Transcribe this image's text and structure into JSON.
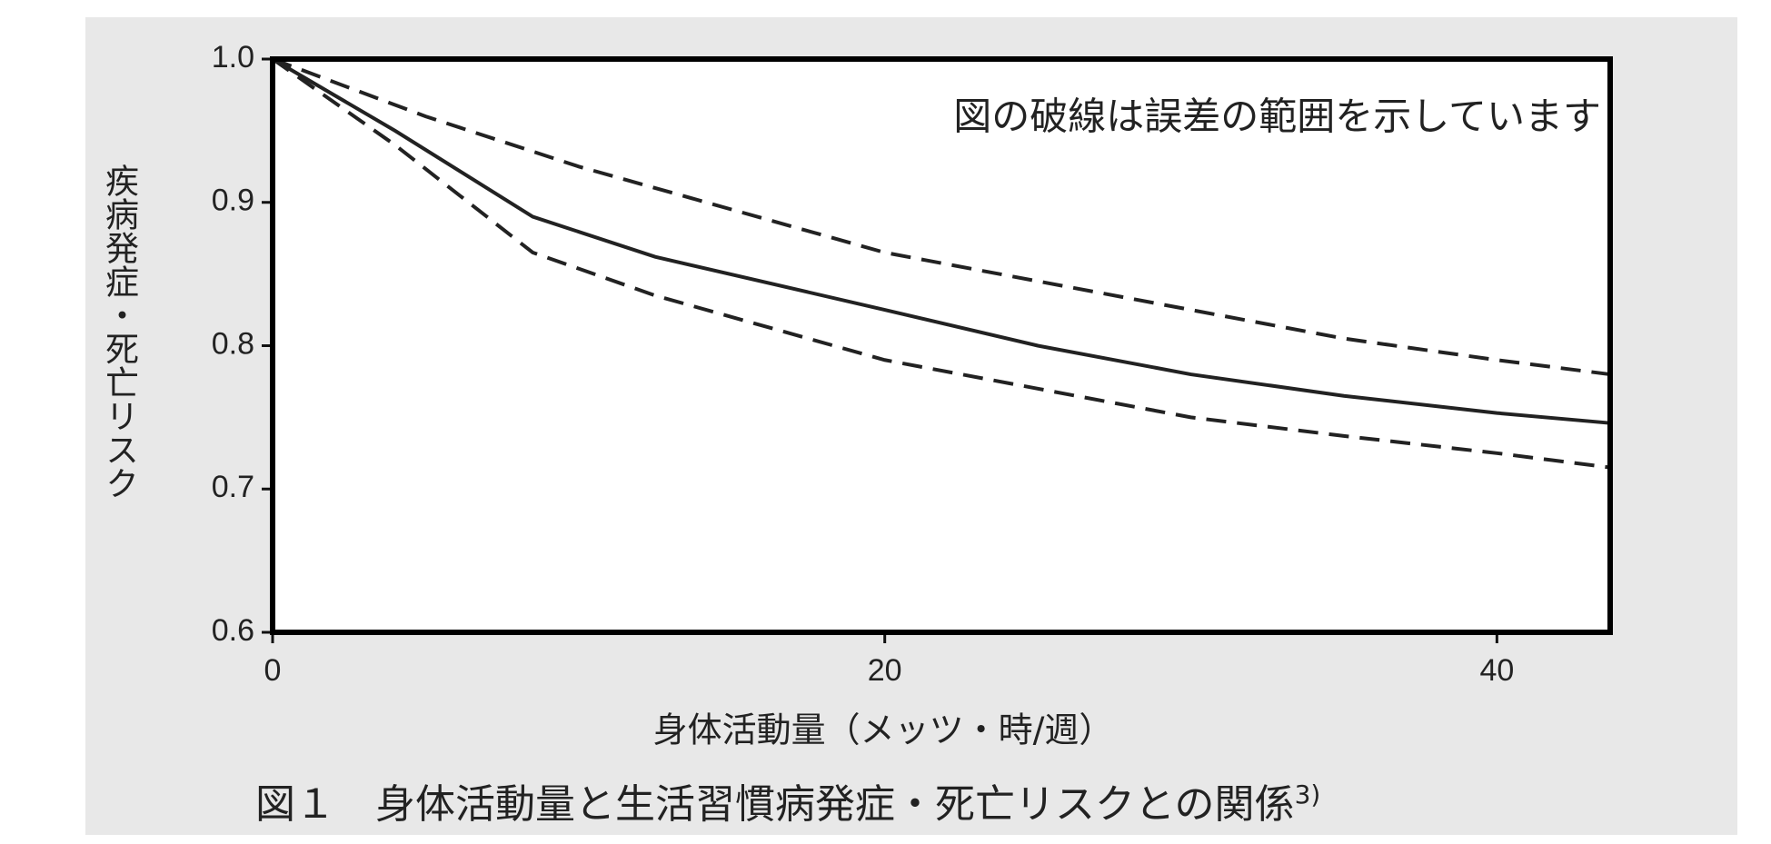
{
  "chart_data": {
    "type": "line",
    "annotation": "図の破線は誤差の範囲を示しています",
    "y_label": "疾病発症・死亡リスク",
    "x_label": "身体活動量（メッツ・時/週）",
    "caption": "図１　身体活動量と生活習慣病発症・死亡リスクとの関係",
    "caption_ref": "3)",
    "xlim": [
      0,
      43.7
    ],
    "ylim": [
      0.6,
      1.0
    ],
    "xticks": [
      0,
      20,
      40
    ],
    "yticks": [
      {
        "value": 1,
        "label": "1.0"
      },
      0.9,
      0.8,
      0.7,
      0.6
    ],
    "series": [
      {
        "color": "#222222",
        "dashed": true,
        "x": [
          0,
          5,
          10,
          15,
          20,
          25,
          30,
          35,
          40,
          43.7
        ],
        "values": [
          1.0,
          0.96,
          0.925,
          0.895,
          0.865,
          0.845,
          0.825,
          0.805,
          0.79,
          0.78
        ]
      },
      {
        "color": "#222222",
        "dashed": false,
        "x": [
          0,
          4,
          8.5,
          12.5,
          20,
          25,
          30,
          35,
          40,
          43.7
        ],
        "values": [
          1.0,
          0.95,
          0.89,
          0.862,
          0.825,
          0.8,
          0.78,
          0.765,
          0.753,
          0.746
        ]
      },
      {
        "color": "#222222",
        "dashed": true,
        "x": [
          0,
          4,
          8.5,
          12.5,
          20,
          25,
          30,
          35,
          40,
          43.7
        ],
        "values": [
          1.0,
          0.94,
          0.865,
          0.835,
          0.79,
          0.77,
          0.75,
          0.737,
          0.725,
          0.715
        ]
      }
    ]
  }
}
